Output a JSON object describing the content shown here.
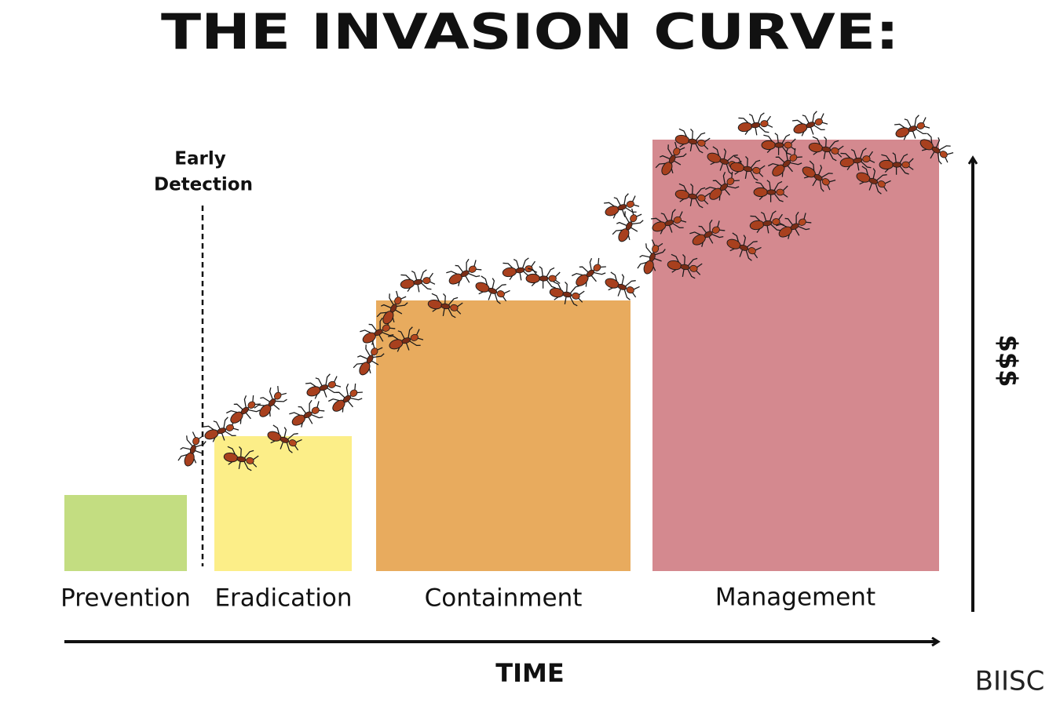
{
  "header": {
    "title": "THE INVASION CURVE:"
  },
  "annotation": {
    "lines": [
      "Early",
      "Detection"
    ]
  },
  "stages": [
    "Prevention",
    "Eradication",
    "Containment",
    "Management"
  ],
  "x_axis": {
    "label": "TIME"
  },
  "y_axis": {
    "label": "$$$"
  },
  "brand": "BIISC"
}
